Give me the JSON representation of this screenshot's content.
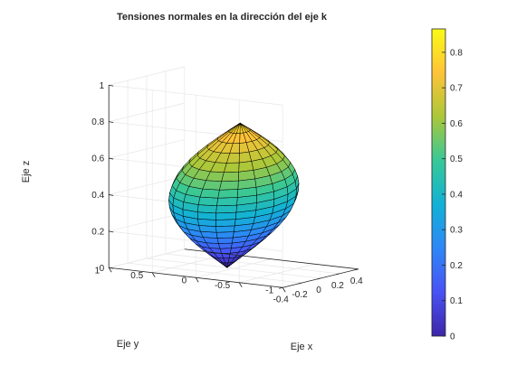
{
  "chart_data": {
    "type": "surface3d",
    "title": "Tensiones normales en la dirección del eje k",
    "xlabel": "Eje x",
    "ylabel": "Eje y",
    "zlabel": "Eje z",
    "xlim": [
      -0.4,
      0.4
    ],
    "ylim": [
      -1,
      1
    ],
    "zlim": [
      0,
      1
    ],
    "x_ticks": [
      "-0.4",
      "-0.2",
      "0",
      "0.2",
      "0.4"
    ],
    "y_ticks": [
      "-1",
      "-0.5",
      "0",
      "0.5",
      "1"
    ],
    "z_ticks": [
      "0",
      "0.2",
      "0.4",
      "0.6",
      "0.8",
      "1"
    ],
    "colorbar": {
      "range": [
        0,
        0.866
      ],
      "ticks": [
        "0",
        "0.1",
        "0.2",
        "0.3",
        "0.4",
        "0.5",
        "0.6",
        "0.7",
        "0.8"
      ],
      "colormap": "parula"
    },
    "surface": {
      "shape": "spindle (closed surface of revolution)",
      "pole_bottom": [
        0,
        0,
        0
      ],
      "pole_top": [
        0,
        0,
        0.8
      ],
      "max_radius": 0.4,
      "mesh_lines": 20,
      "color_by": "z"
    },
    "grid": true,
    "colors": {
      "axis": "#262626",
      "grid": "#e6e6e6",
      "edge": "#000000",
      "parula_low": "#3e26a8",
      "parula_high": "#f9fb15"
    }
  }
}
